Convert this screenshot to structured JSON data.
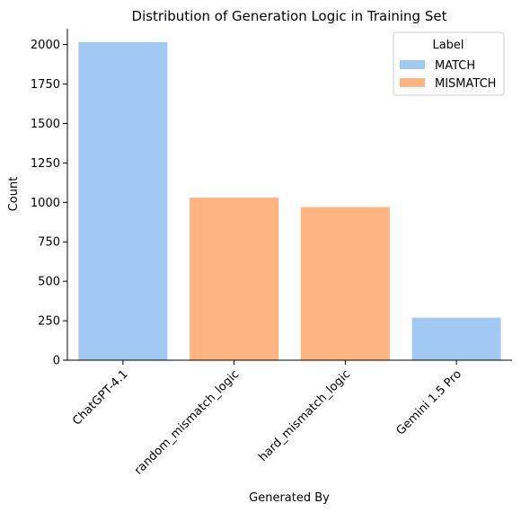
{
  "chart_data": {
    "type": "bar",
    "title": "Distribution of Generation Logic in Training Set",
    "xlabel": "Generated By",
    "ylabel": "Count",
    "categories": [
      "ChatGPT-4.1",
      "random_mismatch_logic",
      "hard_mismatch_logic",
      "Gemini 1.5 Pro"
    ],
    "values": [
      2015,
      1030,
      970,
      270
    ],
    "bar_labels": [
      "MATCH",
      "MISMATCH",
      "MISMATCH",
      "MATCH"
    ],
    "ylim": [
      0,
      2100
    ],
    "yticks": [
      0,
      250,
      500,
      750,
      1000,
      1250,
      1500,
      1750,
      2000
    ],
    "grid": false,
    "legend": {
      "title": "Label",
      "placement": "top-right",
      "entries": [
        {
          "name": "MATCH",
          "color": "#a1c9f4"
        },
        {
          "name": "MISMATCH",
          "color": "#ffb482"
        }
      ]
    }
  }
}
